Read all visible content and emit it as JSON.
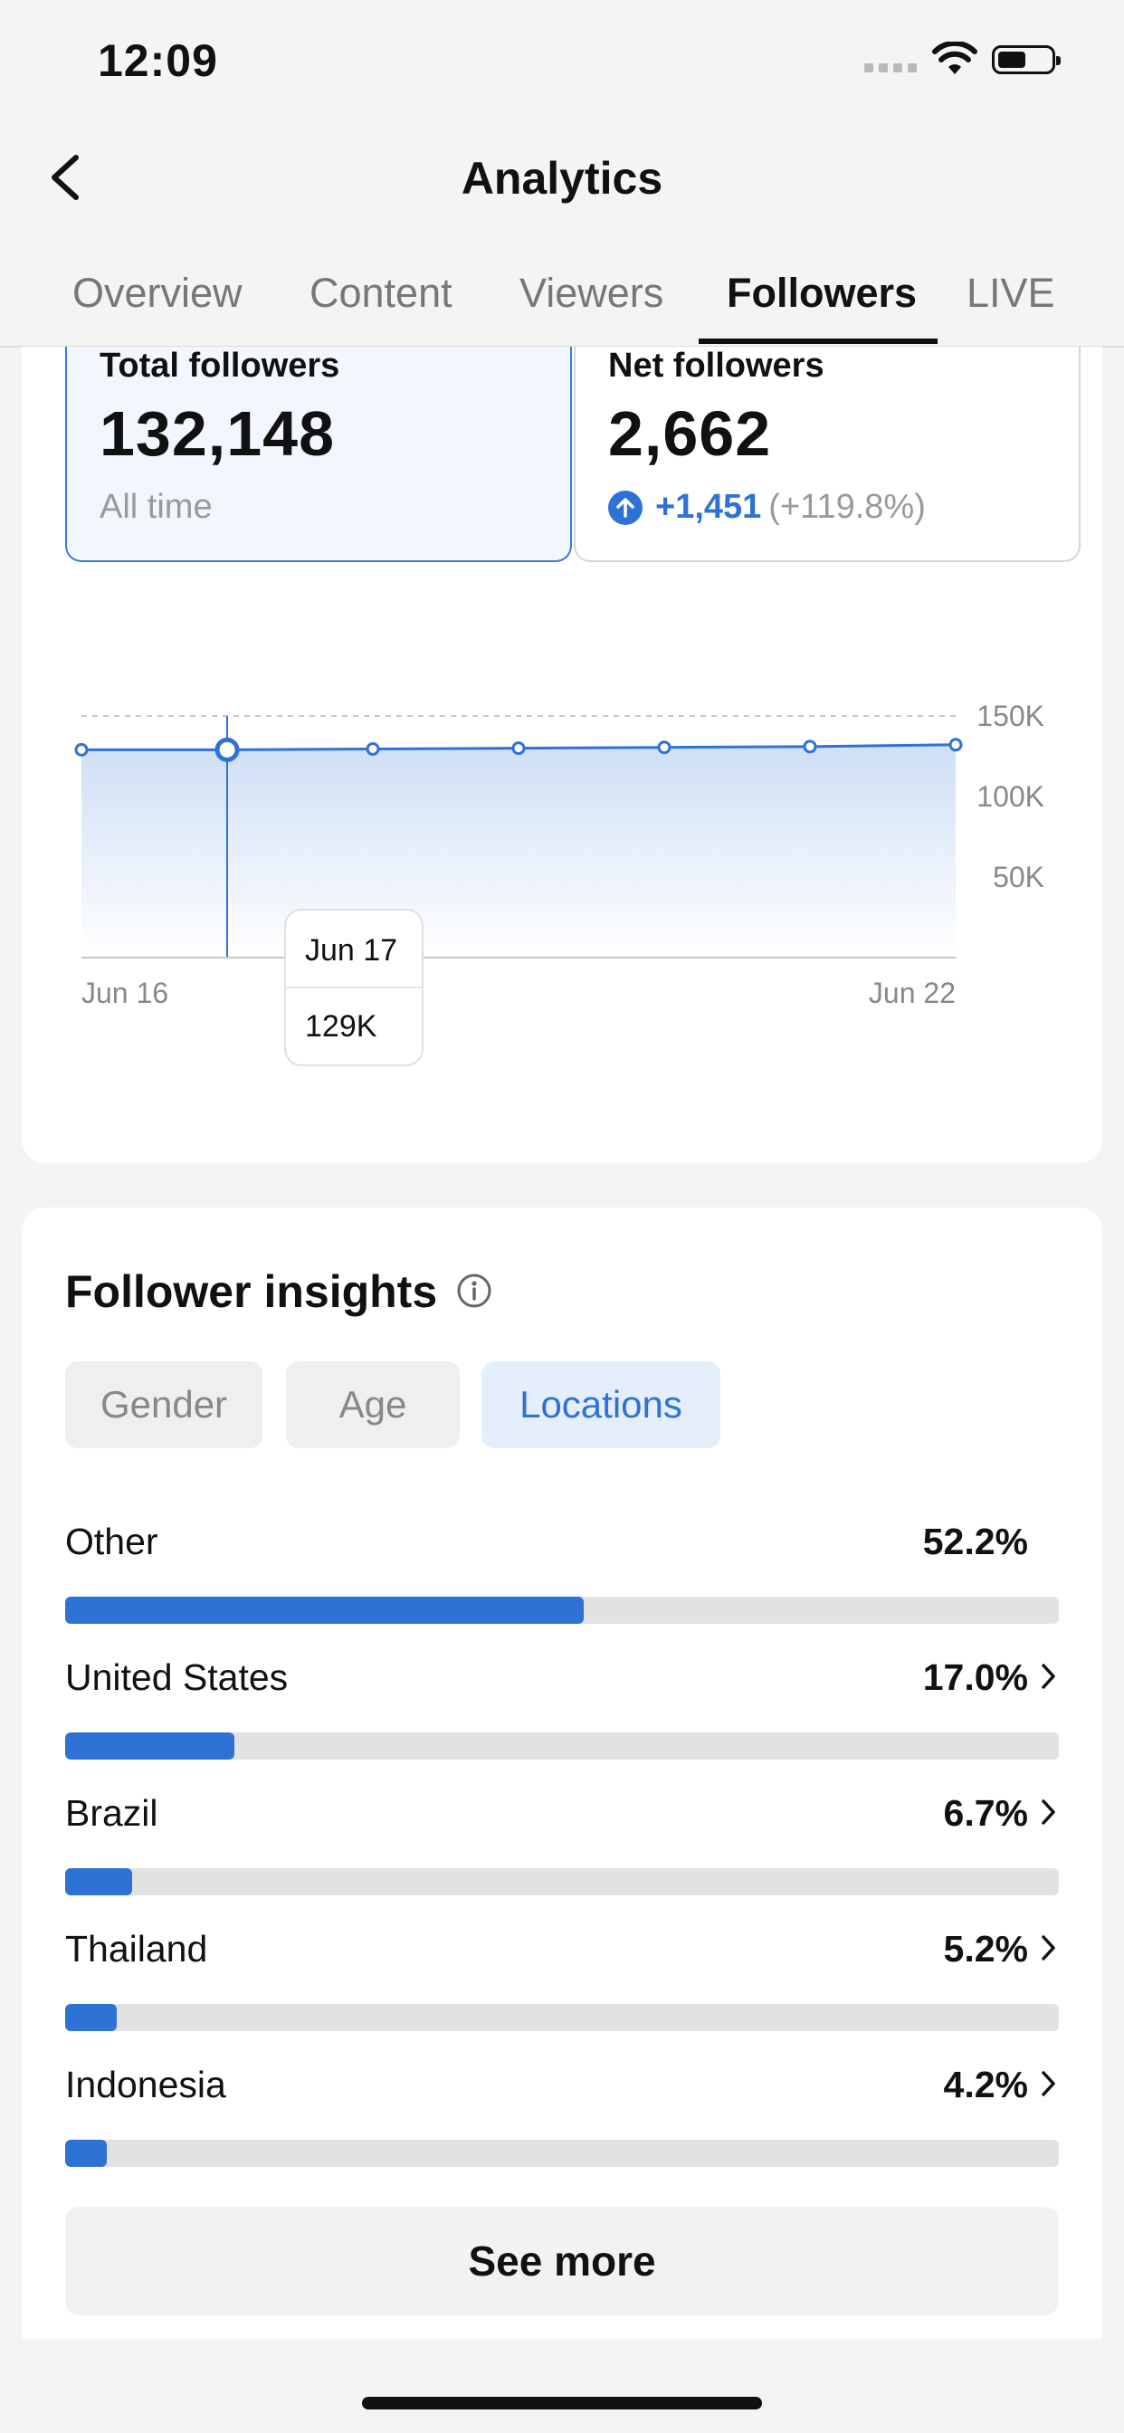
{
  "status_bar": {
    "time": "12:09"
  },
  "header": {
    "title": "Analytics"
  },
  "tabs": [
    {
      "label": "Overview"
    },
    {
      "label": "Content"
    },
    {
      "label": "Viewers"
    },
    {
      "label": "Followers",
      "active": true
    },
    {
      "label": "LIVE"
    }
  ],
  "stats": {
    "total": {
      "label": "Total followers",
      "value": "132,148",
      "sub": "All time"
    },
    "net": {
      "label": "Net followers",
      "value": "2,662",
      "change": "+1,451",
      "change_pct": "(+119.8%)"
    }
  },
  "chart_data": {
    "type": "area",
    "x": [
      "Jun 16",
      "Jun 17",
      "Jun 18",
      "Jun 19",
      "Jun 20",
      "Jun 21",
      "Jun 22"
    ],
    "y": [
      129000,
      129000,
      129500,
      130000,
      130500,
      131000,
      132148
    ],
    "y_ticks": [
      "150K",
      "100K",
      "50K"
    ],
    "y_tick_values": [
      150000,
      100000,
      50000
    ],
    "ylim": [
      0,
      150000
    ],
    "x_tick_labels": [
      "Jun 16",
      "Jun 22"
    ],
    "tooltip": {
      "date": "Jun 17",
      "value": "129K"
    },
    "selected_index": 1,
    "color": "#2f72d6"
  },
  "insights": {
    "title": "Follower insights",
    "chips": [
      {
        "label": "Gender"
      },
      {
        "label": "Age"
      },
      {
        "label": "Locations",
        "active": true
      }
    ],
    "locations": [
      {
        "name": "Other",
        "pct": "52.2%",
        "value": 52.2,
        "chevron": false
      },
      {
        "name": "United States",
        "pct": "17.0%",
        "value": 17.0,
        "chevron": true
      },
      {
        "name": "Brazil",
        "pct": "6.7%",
        "value": 6.7,
        "chevron": true
      },
      {
        "name": "Thailand",
        "pct": "5.2%",
        "value": 5.2,
        "chevron": true
      },
      {
        "name": "Indonesia",
        "pct": "4.2%",
        "value": 4.2,
        "chevron": true
      }
    ],
    "see_more": "See more"
  },
  "icons": {
    "back": "chevron-left-icon",
    "info": "info-icon",
    "up": "arrow-up-circle-icon",
    "chevron": "chevron-right-icon"
  }
}
